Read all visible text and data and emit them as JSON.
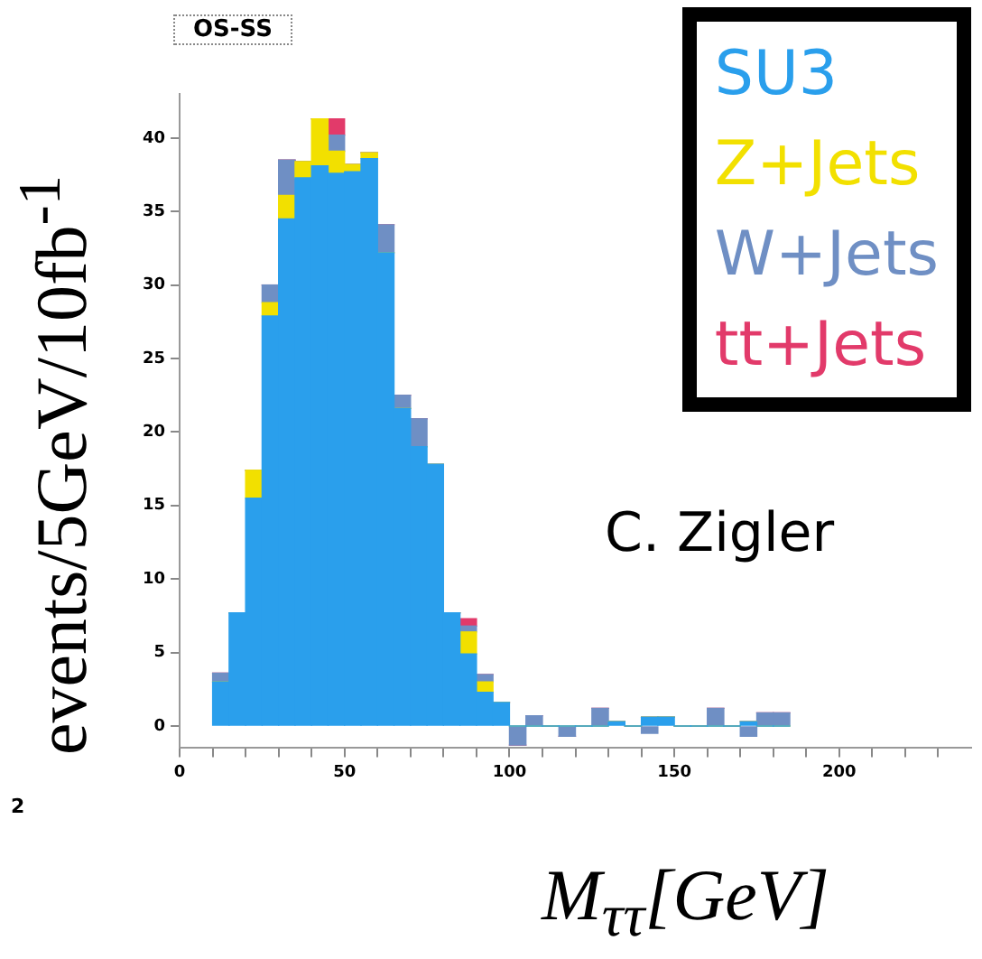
{
  "chart_data": {
    "type": "bar",
    "stacked": true,
    "xlabel": "M$_{ττ}$[GeV]",
    "ylabel": "events/5GeV/10fb$^{-1}$",
    "x": [
      12.5,
      17.5,
      22.5,
      27.5,
      32.5,
      37.5,
      42.5,
      47.5,
      52.5,
      57.5,
      62.5,
      67.5,
      72.5,
      77.5,
      82.5,
      87.5,
      92.5,
      97.5,
      102.5,
      107.5,
      112.5,
      117.5,
      122.5,
      127.5,
      132.5,
      137.5,
      142.5,
      147.5,
      152.5,
      157.5,
      162.5,
      167.5,
      172.5,
      177.5,
      182.5
    ],
    "series": [
      {
        "name": "SU3",
        "color": "#2a9fec",
        "values": [
          3.0,
          7.7,
          15.5,
          27.9,
          34.5,
          37.3,
          38.1,
          37.6,
          37.7,
          38.6,
          32.2,
          21.6,
          19.0,
          17.8,
          7.7,
          4.9,
          2.3,
          1.6,
          0,
          0,
          0,
          0,
          0,
          0,
          0.3,
          0,
          0.6,
          0.6,
          0,
          0,
          0,
          0,
          0.3,
          0,
          0
        ]
      },
      {
        "name": "Z+Jets",
        "color": "#f2e000",
        "values": [
          0,
          0,
          1.9,
          0.9,
          1.6,
          1.1,
          3.2,
          1.5,
          0.5,
          0.4,
          0,
          0,
          0,
          0,
          0,
          1.5,
          0.7,
          0,
          0,
          0,
          0,
          0,
          0,
          0,
          0,
          0,
          0,
          0,
          0,
          0,
          0,
          0,
          0,
          0,
          0
        ]
      },
      {
        "name": "W+Jets",
        "color": "#6f8fc4",
        "values": [
          0.6,
          0,
          0,
          1.2,
          2.4,
          0,
          0,
          1.1,
          0,
          0,
          1.9,
          0.9,
          1.9,
          0,
          0,
          0.4,
          0.5,
          0,
          -1.3,
          0.7,
          0,
          -0.7,
          0,
          1.2,
          0,
          0,
          -0.5,
          0,
          0,
          0,
          1.2,
          0,
          -0.7,
          0.9,
          0.9
        ]
      },
      {
        "name": "tt+Jets",
        "color": "#e23a6a",
        "values": [
          0,
          0,
          0,
          0,
          0,
          0,
          0,
          1.1,
          0,
          0,
          0,
          0,
          0,
          0,
          0,
          0.5,
          0,
          0,
          0,
          0,
          0,
          0,
          0,
          0,
          0,
          0,
          0,
          0,
          0,
          0,
          0,
          0,
          0,
          0,
          0
        ]
      }
    ],
    "xlim": [
      0,
      240
    ],
    "xticks": [
      0,
      {
        "value": 10,
        "label": null
      },
      {
        "value": 20,
        "label": null
      },
      {
        "value": 30,
        "label": null
      },
      {
        "value": 40,
        "label": null
      },
      50,
      {
        "value": 60,
        "label": null
      },
      {
        "value": 70,
        "label": null
      },
      {
        "value": 80,
        "label": null
      },
      {
        "value": 90,
        "label": null
      },
      100,
      {
        "value": 110,
        "label": null
      },
      {
        "value": 120,
        "label": null
      },
      {
        "value": 130,
        "label": null
      },
      {
        "value": 140,
        "label": null
      },
      150,
      {
        "value": 160,
        "label": null
      },
      {
        "value": 170,
        "label": null
      },
      {
        "value": 180,
        "label": null
      },
      {
        "value": 190,
        "label": null
      },
      200,
      {
        "value": 210,
        "label": null
      },
      {
        "value": 220,
        "label": null
      },
      {
        "value": 230,
        "label": null
      }
    ],
    "ylim": [
      -1.5,
      43
    ],
    "yticks": [
      0,
      5,
      10,
      15,
      20,
      25,
      30,
      35,
      40
    ],
    "legend": "top right",
    "annotations": [
      "OS-SS",
      "C. Zigler",
      "2"
    ]
  }
}
